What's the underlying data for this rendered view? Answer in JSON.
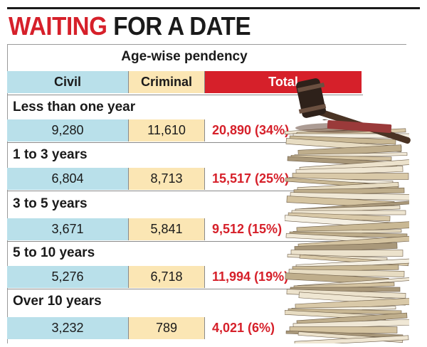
{
  "headline": {
    "part1": "WAITING",
    "part2": "FOR A DATE"
  },
  "chart_data": {
    "type": "table",
    "title": "Age-wise pendency",
    "columns": [
      "Civil",
      "Criminal",
      "Total"
    ],
    "rows": [
      {
        "category": "Less than one year",
        "civil": "9,280",
        "criminal": "11,610",
        "total": "20,890 (34%)"
      },
      {
        "category": "1 to 3 years",
        "civil": "6,804",
        "criminal": "8,713",
        "total": "15,517 (25%)"
      },
      {
        "category": "3 to 5 years",
        "civil": "3,671",
        "criminal": "5,841",
        "total": "9,512 (15%)"
      },
      {
        "category": "5 to 10 years",
        "civil": "5,276",
        "criminal": "6,718",
        "total": "11,994 (19%)"
      },
      {
        "category": "Over 10 years",
        "civil": "3,232",
        "criminal": "789",
        "total": "4,021 (6%)"
      }
    ],
    "colors": {
      "civil": "#b9e0ea",
      "criminal": "#fbe6b4",
      "total_header": "#d6202a",
      "total_text": "#d6202a"
    }
  }
}
